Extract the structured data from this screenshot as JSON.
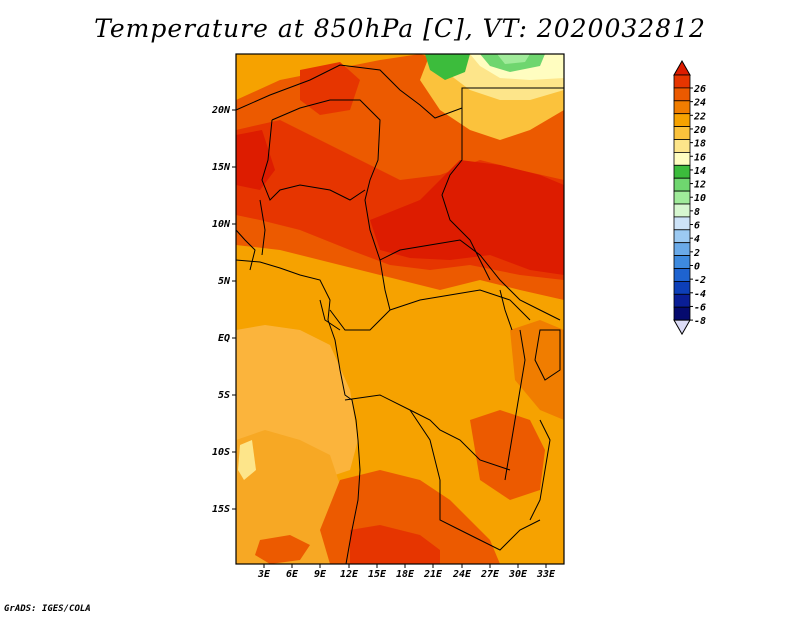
{
  "title": "Temperature at 850hPa [C], VT: 2020032812",
  "credit": "GrADS: IGES/COLA",
  "map": {
    "region": "Central Africa",
    "lat_labels": [
      "20N",
      "15N",
      "10N",
      "5N",
      "EQ",
      "5S",
      "10S",
      "15S"
    ],
    "lon_labels": [
      "3E",
      "6E",
      "9E",
      "12E",
      "15E",
      "18E",
      "21E",
      "24E",
      "27E",
      "30E",
      "33E"
    ]
  },
  "colorbar": {
    "levels": [
      "26",
      "24",
      "22",
      "20",
      "18",
      "16",
      "14",
      "12",
      "10",
      "8",
      "6",
      "4",
      "2",
      "0",
      "-2",
      "-4",
      "-6",
      "-8"
    ],
    "colors": [
      "#dd1c00",
      "#e63500",
      "#ec5a00",
      "#f07d00",
      "#f6a200",
      "#fbc23c",
      "#fde58a",
      "#fffdc0",
      "#3cbc3c",
      "#6fd66f",
      "#a0eb9a",
      "#d7f7d0",
      "#cde3f8",
      "#9ccaf2",
      "#6aaae8",
      "#3e8ade",
      "#1e63d0",
      "#0d3fb8",
      "#0a1e96",
      "#050a6e",
      "#dcdcf6"
    ]
  }
}
